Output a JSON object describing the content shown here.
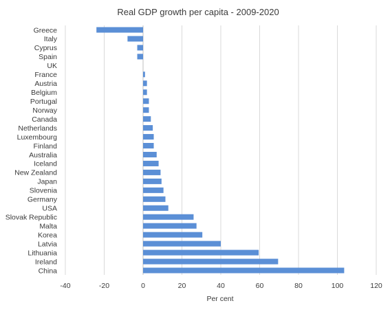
{
  "chart_data": {
    "type": "bar",
    "orientation": "horizontal",
    "title": "Real GDP growth per capita - 2009-2020",
    "xlabel": "Per cent",
    "ylabel": "",
    "xlim": [
      -40,
      120
    ],
    "xticks": [
      -40,
      -20,
      0,
      20,
      40,
      60,
      80,
      100,
      120
    ],
    "grid": true,
    "legend": "none",
    "bar_color": "#5b8fd6",
    "categories": [
      "Greece",
      "Italy",
      "Cyprus",
      "Spain",
      "UK",
      "France",
      "Austria",
      "Belgium",
      "Portugal",
      "Norway",
      "Canada",
      "Netherlands",
      "Luxembourg",
      "Finland",
      "Australia",
      "Iceland",
      "New Zealand",
      "Japan",
      "Slovenia",
      "Germany",
      "USA",
      "Slovak Republic",
      "Malta",
      "Korea",
      "Latvia",
      "Lithuania",
      "Ireland",
      "China"
    ],
    "values": [
      -24,
      -8,
      -3,
      -3,
      0,
      1,
      2,
      2,
      3,
      3,
      4,
      5,
      5.5,
      5.5,
      7,
      8,
      9,
      9.5,
      10.5,
      11.5,
      13,
      26,
      27.5,
      30.5,
      40,
      59.5,
      69.5,
      103.5
    ]
  }
}
